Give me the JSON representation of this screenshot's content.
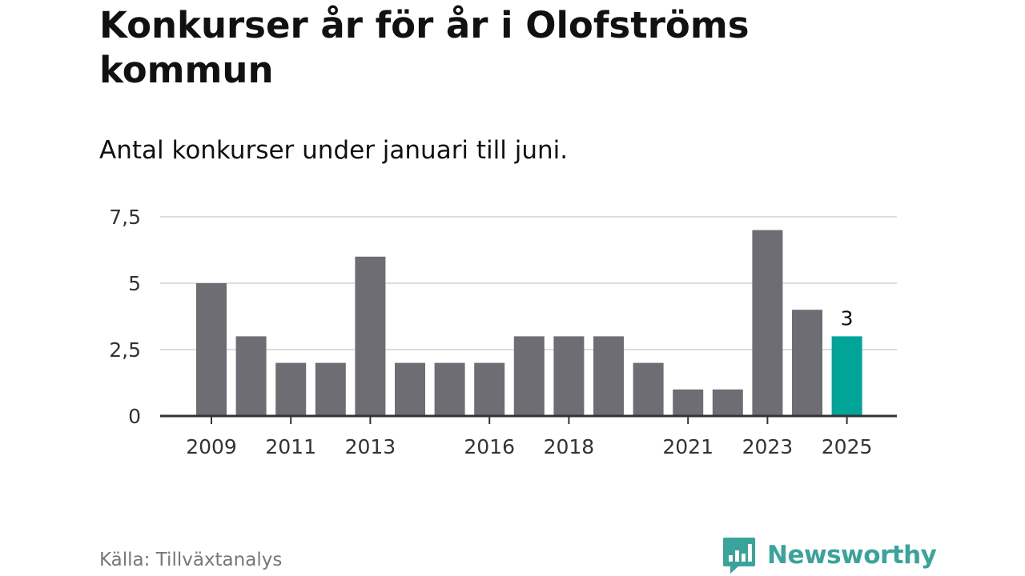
{
  "header": {
    "title": "Konkurser år för år i Olofströms kommun",
    "subtitle": "Antal konkurser under januari till juni."
  },
  "footer": {
    "source": "Källa: Tillväxtanalys",
    "brand": "Newsworthy"
  },
  "colors": {
    "bar": "#6e6d73",
    "highlight": "#00a499",
    "grid": "#dddddd",
    "axis": "#333333",
    "brand": "#3aa39a"
  },
  "icons": {
    "brand": "bar-chart-speech-bubble-icon"
  },
  "chart_data": {
    "type": "bar",
    "title": "Konkurser år för år i Olofströms kommun",
    "subtitle": "Antal konkurser under januari till juni.",
    "xlabel": "",
    "ylabel": "",
    "categories": [
      "2009",
      "2010",
      "2011",
      "2012",
      "2013",
      "2014",
      "2015",
      "2016",
      "2017",
      "2018",
      "2019",
      "2020",
      "2021",
      "2022",
      "2023",
      "2024",
      "2025"
    ],
    "values": [
      5,
      3,
      2,
      2,
      6,
      2,
      2,
      2,
      3,
      3,
      3,
      2,
      1,
      1,
      7,
      4,
      3
    ],
    "ylim": [
      0,
      7.5
    ],
    "yticks": [
      0,
      2.5,
      5,
      7.5
    ],
    "ytick_labels": [
      "0",
      "2,5",
      "5",
      "7,5"
    ],
    "xtick_labels": [
      "2009",
      "2011",
      "2013",
      "2016",
      "2018",
      "2021",
      "2023",
      "2025"
    ],
    "highlight_category": "2025",
    "data_labels": [
      {
        "category": "2025",
        "text": "3"
      }
    ],
    "grid": true,
    "legend": "none"
  }
}
